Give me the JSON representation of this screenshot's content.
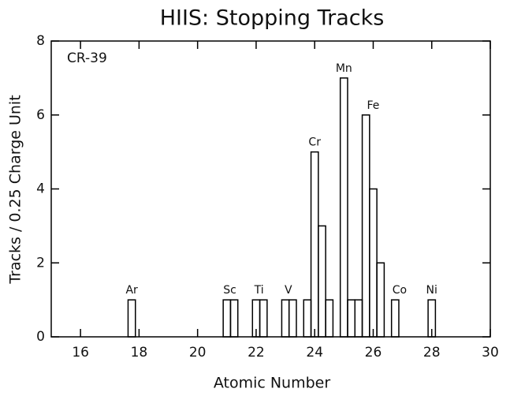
{
  "chart_data": {
    "type": "histogram",
    "title": "HIIS: Stopping Tracks",
    "xlabel": "Atomic Number",
    "ylabel": "Tracks / 0.25 Charge Unit",
    "label": "CR-39",
    "bins": [
      17.625,
      17.875,
      18.125,
      18.375,
      18.625,
      18.875,
      19.125,
      19.375,
      19.625,
      19.875,
      20.125,
      20.375,
      20.625,
      20.875,
      21.125,
      21.375,
      21.625,
      21.875,
      22.125,
      22.375,
      22.625,
      22.875,
      23.125,
      23.375,
      23.625,
      23.875,
      24.125,
      24.375,
      24.625,
      24.875,
      25.125,
      25.375,
      25.625,
      25.875,
      26.125,
      26.375,
      26.625,
      26.875,
      27.125,
      27.375,
      27.625,
      27.875,
      28.125
    ],
    "counts": [
      1,
      0,
      0,
      0,
      0,
      0,
      0,
      0,
      0,
      0,
      0,
      0,
      0,
      1,
      1,
      0,
      0,
      1,
      1,
      0,
      0,
      1,
      1,
      0,
      1,
      5,
      3,
      1,
      0,
      7,
      1,
      1,
      6,
      4,
      2,
      0,
      1,
      0,
      0,
      0,
      0,
      1
    ],
    "color": "#000000",
    "xlim": [
      15,
      30
    ],
    "xticks": [
      16,
      18,
      20,
      22,
      24,
      26,
      28,
      30
    ],
    "ylim": [
      0,
      8
    ],
    "yticks": [
      0,
      2,
      4,
      6,
      8
    ],
    "annotations": [
      {
        "text": "Ar",
        "x": 17.75,
        "y": 1
      },
      {
        "text": "Sc",
        "x": 21.1,
        "y": 1
      },
      {
        "text": "Ti",
        "x": 22.1,
        "y": 1
      },
      {
        "text": "V",
        "x": 23.1,
        "y": 1
      },
      {
        "text": "Cr",
        "x": 24.0,
        "y": 5
      },
      {
        "text": "Mn",
        "x": 25.0,
        "y": 7
      },
      {
        "text": "Fe",
        "x": 26.0,
        "y": 6
      },
      {
        "text": "Co",
        "x": 26.9,
        "y": 1
      },
      {
        "text": "Ni",
        "x": 28.0,
        "y": 1
      }
    ]
  }
}
